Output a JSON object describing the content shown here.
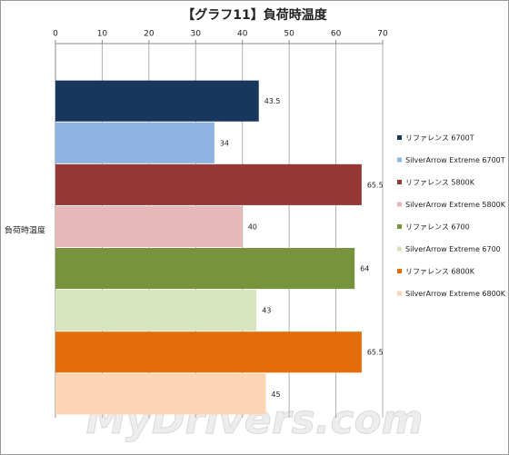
{
  "chart_data": {
    "type": "bar",
    "orientation": "horizontal",
    "title": "【グラフ11】負荷時温度",
    "categories": [
      "負荷時温度"
    ],
    "series": [
      {
        "name": "リファレンス 6700T",
        "color": "#17375e",
        "values": [
          43.5
        ]
      },
      {
        "name": "SilverArrow Extreme 6700T",
        "color": "#8db4e2",
        "values": [
          34
        ]
      },
      {
        "name": "リファレンス 5800K",
        "color": "#953735",
        "values": [
          65.5
        ]
      },
      {
        "name": "SilverArrow Extreme 5800K",
        "color": "#e6b9b8",
        "values": [
          40
        ]
      },
      {
        "name": "リファレンス 6700",
        "color": "#77933c",
        "values": [
          64
        ]
      },
      {
        "name": "SilverArrow Extreme 6700",
        "color": "#d7e4bd",
        "values": [
          43
        ]
      },
      {
        "name": "リファレンス 6800K",
        "color": "#e46c0a",
        "values": [
          65.5
        ]
      },
      {
        "name": "SilverArrow Extreme 6800K",
        "color": "#fcd5b5",
        "values": [
          45
        ]
      }
    ],
    "xlim": [
      0,
      70
    ],
    "xticks": [
      0,
      10,
      20,
      30,
      40,
      50,
      60,
      70
    ],
    "grid": true,
    "legend": "right",
    "watermark": "MyDrivers.com"
  }
}
